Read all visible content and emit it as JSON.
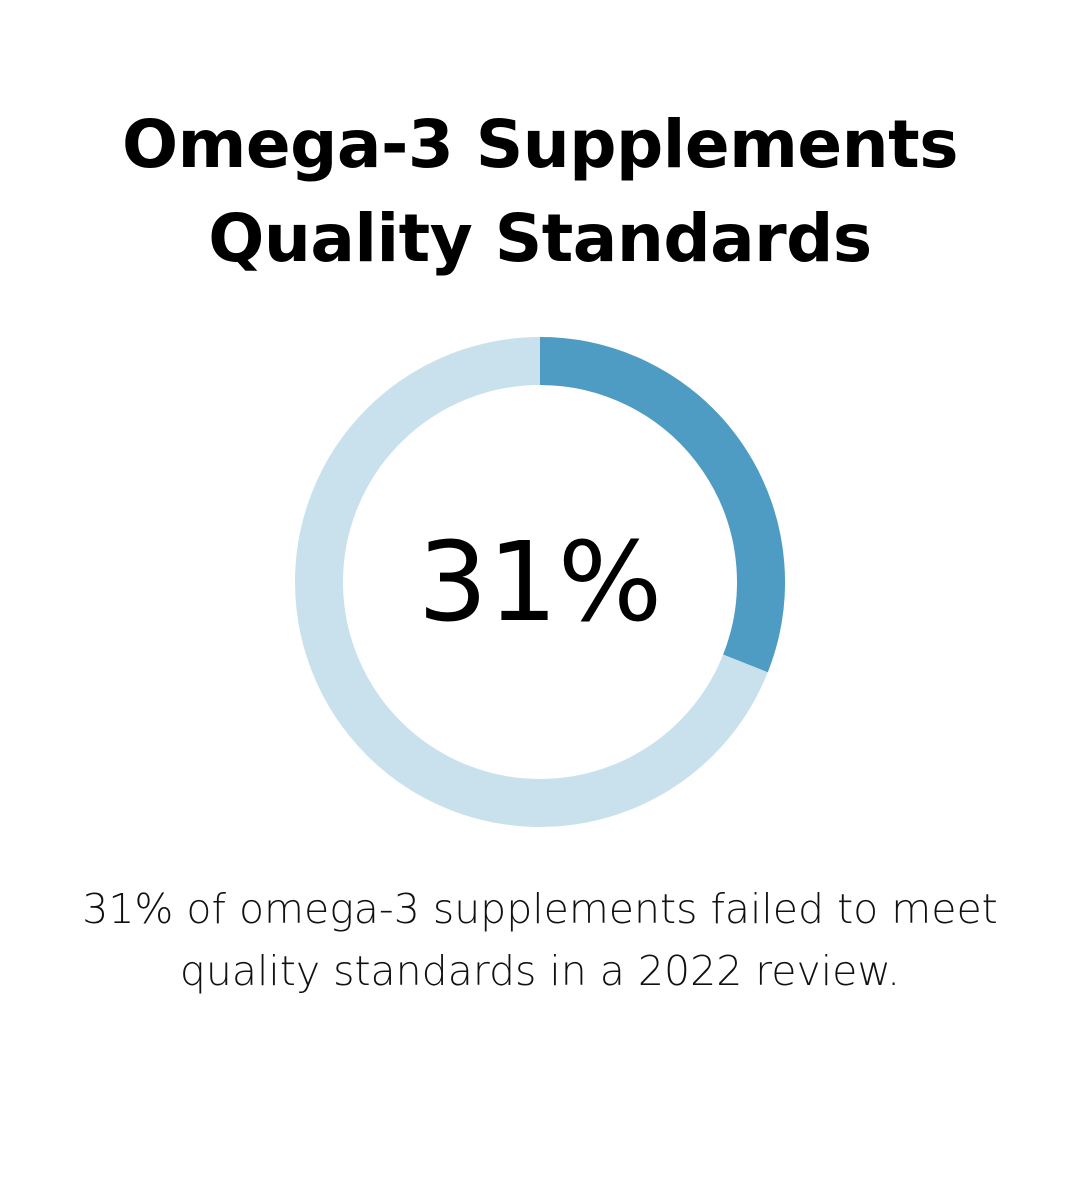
{
  "title_lines": [
    "Omega-3 Supplements",
    "Quality Standards"
  ],
  "caption_lines": [
    "31% of omega-3 supplements failed to meet",
    "quality standards in a 2022 review."
  ],
  "colors": {
    "primary": "#4e9cc4",
    "track": "#c9e1ed",
    "text": "#000000"
  },
  "chart_data": {
    "type": "pie",
    "variant": "donut",
    "title": "Omega-3 Supplements Quality Standards",
    "center_label": "31%",
    "values": [
      31,
      69
    ],
    "total": 100
  }
}
